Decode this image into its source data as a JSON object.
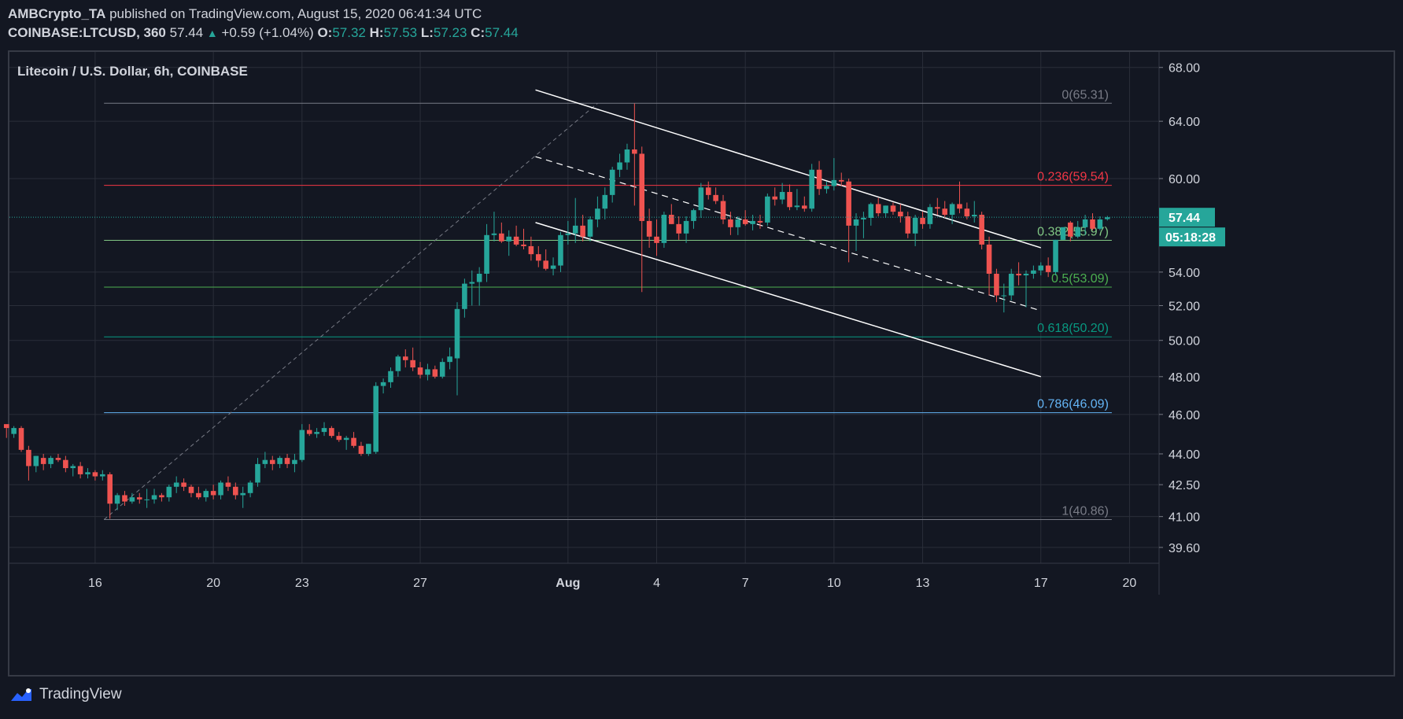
{
  "header": {
    "line1_author": "AMBCrypto_TA",
    "line1_rest": "published on TradingView.com, August 15, 2020 06:41:34 UTC",
    "symbol": "COINBASE:LTCUSD, 360",
    "last": "57.44",
    "change": "+0.59 (+1.04%)",
    "o_label": "O:",
    "o_val": "57.32",
    "h_label": "H:",
    "h_val": "57.53",
    "l_label": "L:",
    "l_val": "57.23",
    "c_label": "C:",
    "c_val": "57.44"
  },
  "footer": {
    "brand": "TradingView",
    "logo_icon": "tradingview-logo-icon"
  },
  "chart_data": {
    "type": "candlestick",
    "title": "Litecoin / U.S. Dollar, 6h, COINBASE",
    "x_ticks": [
      {
        "label": "16",
        "t": 16
      },
      {
        "label": "20",
        "t": 20
      },
      {
        "label": "23",
        "t": 23
      },
      {
        "label": "27",
        "t": 27
      },
      {
        "label": "Aug",
        "t": 32
      },
      {
        "label": "4",
        "t": 35
      },
      {
        "label": "7",
        "t": 38
      },
      {
        "label": "10",
        "t": 41
      },
      {
        "label": "13",
        "t": 44
      },
      {
        "label": "17",
        "t": 48
      },
      {
        "label": "20",
        "t": 51
      }
    ],
    "x_note": "t = July day number (Aug 1 = 32)",
    "y_ticks": [
      "68.00",
      "64.00",
      "60.00",
      "57.44",
      "54.00",
      "52.00",
      "50.00",
      "48.00",
      "46.00",
      "44.00",
      "42.50",
      "41.00",
      "39.60"
    ],
    "y_scale": "log",
    "ylim": [
      38.9,
      69.2
    ],
    "last_price": "57.44",
    "countdown": "05:18:28",
    "fib_levels": [
      {
        "label": "0(65.31)",
        "value": 65.31,
        "color": "#787b86"
      },
      {
        "label": "0.236(59.54)",
        "value": 59.54,
        "color": "#f23645"
      },
      {
        "label": "0.382(55.97)",
        "value": 55.97,
        "color": "#81c784"
      },
      {
        "label": "0.5(53.09)",
        "value": 53.09,
        "color": "#4caf50"
      },
      {
        "label": "0.618(50.20)",
        "value": 50.2,
        "color": "#089981"
      },
      {
        "label": "0.786(46.09)",
        "value": 46.09,
        "color": "#64b5f6"
      },
      {
        "label": "1(40.86)",
        "value": 40.86,
        "color": "#787b86"
      }
    ],
    "fib_range": {
      "t_start": 16.3,
      "t_end": 50.4
    },
    "fib_trend": {
      "t1": 16.3,
      "p1": 40.86,
      "t2": 33.0,
      "p2": 65.31
    },
    "channel": {
      "upper": {
        "t1": 30.9,
        "p1": 66.3,
        "t2": 48.0,
        "p2": 55.5
      },
      "middle": {
        "t1": 30.9,
        "p1": 61.5,
        "t2": 48.0,
        "p2": 51.7
      },
      "lower": {
        "t1": 30.9,
        "p1": 57.1,
        "t2": 48.0,
        "p2": 48.0
      }
    },
    "colors": {
      "up": "#26a69a",
      "down": "#ef5350",
      "background": "#131722",
      "grid": "#2a2e39",
      "text": "#d1d4dc",
      "channel": "#ffffff"
    },
    "candles": [
      [
        45.5,
        45.3,
        44.8,
        45.3
      ],
      [
        45.0,
        45.4,
        44.8,
        45.3
      ],
      [
        45.3,
        45.4,
        44.1,
        44.2
      ],
      [
        44.2,
        44.4,
        42.7,
        43.4
      ],
      [
        43.4,
        43.9,
        43.1,
        43.9
      ],
      [
        43.8,
        44.0,
        43.2,
        43.5
      ],
      [
        43.5,
        43.9,
        43.3,
        43.8
      ],
      [
        43.8,
        44.0,
        43.6,
        43.7
      ],
      [
        43.7,
        43.9,
        43.1,
        43.3
      ],
      [
        43.3,
        43.5,
        42.9,
        43.4
      ],
      [
        43.4,
        43.6,
        42.8,
        43.0
      ],
      [
        43.0,
        43.3,
        42.8,
        43.1
      ],
      [
        43.1,
        43.2,
        42.7,
        42.9
      ],
      [
        42.9,
        43.2,
        42.7,
        43.0
      ],
      [
        43.0,
        43.1,
        40.9,
        41.6
      ],
      [
        41.6,
        42.1,
        41.3,
        42.0
      ],
      [
        42.0,
        42.2,
        41.5,
        41.7
      ],
      [
        41.7,
        42.1,
        41.6,
        41.9
      ],
      [
        41.9,
        42.1,
        41.6,
        41.8
      ],
      [
        41.8,
        42.3,
        41.4,
        41.8
      ],
      [
        41.8,
        42.3,
        41.6,
        42.0
      ],
      [
        42.0,
        42.1,
        41.7,
        41.9
      ],
      [
        41.9,
        42.5,
        41.7,
        42.4
      ],
      [
        42.4,
        42.9,
        42.1,
        42.6
      ],
      [
        42.6,
        42.8,
        42.2,
        42.4
      ],
      [
        42.4,
        42.5,
        41.9,
        42.1
      ],
      [
        42.1,
        42.4,
        41.8,
        41.9
      ],
      [
        41.9,
        42.3,
        41.7,
        42.2
      ],
      [
        42.2,
        42.5,
        41.8,
        42.0
      ],
      [
        42.0,
        42.7,
        41.8,
        42.6
      ],
      [
        42.6,
        42.9,
        42.2,
        42.4
      ],
      [
        42.4,
        42.6,
        41.8,
        42.0
      ],
      [
        42.0,
        42.4,
        41.4,
        42.1
      ],
      [
        42.1,
        42.7,
        41.9,
        42.6
      ],
      [
        42.6,
        43.8,
        42.4,
        43.5
      ],
      [
        43.5,
        44.1,
        43.3,
        43.7
      ],
      [
        43.7,
        43.9,
        43.2,
        43.5
      ],
      [
        43.5,
        43.9,
        43.3,
        43.8
      ],
      [
        43.8,
        44.0,
        43.3,
        43.5
      ],
      [
        43.5,
        44.0,
        43.1,
        43.7
      ],
      [
        43.7,
        45.5,
        43.6,
        45.2
      ],
      [
        45.2,
        45.5,
        44.9,
        45.0
      ],
      [
        45.0,
        45.3,
        44.8,
        45.1
      ],
      [
        45.1,
        45.6,
        44.9,
        45.3
      ],
      [
        45.3,
        45.4,
        44.8,
        44.9
      ],
      [
        44.9,
        45.1,
        44.6,
        44.7
      ],
      [
        44.7,
        44.9,
        44.2,
        44.8
      ],
      [
        44.8,
        45.1,
        44.3,
        44.4
      ],
      [
        44.4,
        44.6,
        43.9,
        44.0
      ],
      [
        44.0,
        44.5,
        43.9,
        44.5
      ],
      [
        44.1,
        47.7,
        44.0,
        47.5
      ],
      [
        47.5,
        47.9,
        47.1,
        47.7
      ],
      [
        47.7,
        48.5,
        47.4,
        48.3
      ],
      [
        48.3,
        49.2,
        48.0,
        49.1
      ],
      [
        49.1,
        49.5,
        48.5,
        48.9
      ],
      [
        48.9,
        49.6,
        48.3,
        48.5
      ],
      [
        48.5,
        48.8,
        47.9,
        48.1
      ],
      [
        48.1,
        48.7,
        47.8,
        48.4
      ],
      [
        48.4,
        48.6,
        47.9,
        48.0
      ],
      [
        48.0,
        49.0,
        47.9,
        48.8
      ],
      [
        48.8,
        49.6,
        48.4,
        49.1
      ],
      [
        49.0,
        52.2,
        47.0,
        51.8
      ],
      [
        51.8,
        53.6,
        51.3,
        53.3
      ],
      [
        53.3,
        54.1,
        52.0,
        53.4
      ],
      [
        53.4,
        54.3,
        52.0,
        53.9
      ],
      [
        53.9,
        57.0,
        53.4,
        56.3
      ],
      [
        56.3,
        57.8,
        55.9,
        56.4
      ],
      [
        56.4,
        57.1,
        55.8,
        55.9
      ],
      [
        55.9,
        56.6,
        55.0,
        56.2
      ],
      [
        56.2,
        56.9,
        55.6,
        55.7
      ],
      [
        55.7,
        56.7,
        55.4,
        55.6
      ],
      [
        55.6,
        56.2,
        54.7,
        55.1
      ],
      [
        55.1,
        55.6,
        54.3,
        54.7
      ],
      [
        54.7,
        55.4,
        54.1,
        54.2
      ],
      [
        54.2,
        54.9,
        53.8,
        54.4
      ],
      [
        54.4,
        56.5,
        54.0,
        56.3
      ],
      [
        56.3,
        57.2,
        55.7,
        56.4
      ],
      [
        56.4,
        58.7,
        55.8,
        56.9
      ],
      [
        56.9,
        57.6,
        55.9,
        56.2
      ],
      [
        56.2,
        57.5,
        55.9,
        57.3
      ],
      [
        57.3,
        58.8,
        56.8,
        58.0
      ],
      [
        58.0,
        59.4,
        57.3,
        58.9
      ],
      [
        58.9,
        60.8,
        58.4,
        60.6
      ],
      [
        60.6,
        61.7,
        60.1,
        61.1
      ],
      [
        61.1,
        62.4,
        60.6,
        62.0
      ],
      [
        62.0,
        65.3,
        58.2,
        61.7
      ],
      [
        61.7,
        62.2,
        52.8,
        57.2
      ],
      [
        57.2,
        58.0,
        55.5,
        56.2
      ],
      [
        56.2,
        57.3,
        55.0,
        55.8
      ],
      [
        55.8,
        57.8,
        55.5,
        57.6
      ],
      [
        57.6,
        58.3,
        57.0,
        57.0
      ],
      [
        57.0,
        57.5,
        56.0,
        56.4
      ],
      [
        56.4,
        57.5,
        55.8,
        57.2
      ],
      [
        57.2,
        58.0,
        56.7,
        57.9
      ],
      [
        57.9,
        59.7,
        57.4,
        59.4
      ],
      [
        59.4,
        59.8,
        58.6,
        58.9
      ],
      [
        58.9,
        59.4,
        58.3,
        58.5
      ],
      [
        58.5,
        58.9,
        57.0,
        57.3
      ],
      [
        57.3,
        57.8,
        56.3,
        56.8
      ],
      [
        56.8,
        57.5,
        56.3,
        57.3
      ],
      [
        57.3,
        57.9,
        56.9,
        57.0
      ],
      [
        57.0,
        57.6,
        56.6,
        57.2
      ],
      [
        57.2,
        57.6,
        56.7,
        57.1
      ],
      [
        57.1,
        59.0,
        56.9,
        58.8
      ],
      [
        58.8,
        59.4,
        58.2,
        58.6
      ],
      [
        58.6,
        59.7,
        58.3,
        59.1
      ],
      [
        59.1,
        59.6,
        57.9,
        58.1
      ],
      [
        58.1,
        59.3,
        57.9,
        58.2
      ],
      [
        58.2,
        58.8,
        57.8,
        58.0
      ],
      [
        58.0,
        61.0,
        57.8,
        60.6
      ],
      [
        60.6,
        61.2,
        58.9,
        59.3
      ],
      [
        59.3,
        59.8,
        59.0,
        59.5
      ],
      [
        59.5,
        61.4,
        59.2,
        59.9
      ],
      [
        59.9,
        60.4,
        59.5,
        59.8
      ],
      [
        59.8,
        60.0,
        54.6,
        56.9
      ],
      [
        56.9,
        57.7,
        55.3,
        57.3
      ],
      [
        57.3,
        57.8,
        56.1,
        57.4
      ],
      [
        57.4,
        58.4,
        56.9,
        58.3
      ],
      [
        58.3,
        58.7,
        57.5,
        57.7
      ],
      [
        57.7,
        58.2,
        57.4,
        58.2
      ],
      [
        58.2,
        58.4,
        57.6,
        57.8
      ],
      [
        57.8,
        58.3,
        57.1,
        57.5
      ],
      [
        57.5,
        57.8,
        56.1,
        56.4
      ],
      [
        56.4,
        57.6,
        55.6,
        57.4
      ],
      [
        57.4,
        57.8,
        56.7,
        57.0
      ],
      [
        57.0,
        58.3,
        56.7,
        58.1
      ],
      [
        58.1,
        58.7,
        57.6,
        58.0
      ],
      [
        58.0,
        58.5,
        57.4,
        57.6
      ],
      [
        57.6,
        58.4,
        57.0,
        58.3
      ],
      [
        58.3,
        59.8,
        57.7,
        58.0
      ],
      [
        58.0,
        58.4,
        57.3,
        57.5
      ],
      [
        57.5,
        58.5,
        57.1,
        57.6
      ],
      [
        57.6,
        57.8,
        55.4,
        55.7
      ],
      [
        55.7,
        56.2,
        52.6,
        53.9
      ],
      [
        53.9,
        54.2,
        52.2,
        52.6
      ],
      [
        52.6,
        53.3,
        51.6,
        52.6
      ],
      [
        52.6,
        54.2,
        52.3,
        53.9
      ],
      [
        53.9,
        54.6,
        53.2,
        53.8
      ],
      [
        53.8,
        54.1,
        51.9,
        53.9
      ],
      [
        53.9,
        54.4,
        53.6,
        54.1
      ],
      [
        54.1,
        54.6,
        53.8,
        54.4
      ],
      [
        54.4,
        54.9,
        53.7,
        54.0
      ],
      [
        54.0,
        56.0,
        53.8,
        56.0
      ],
      [
        56.0,
        56.8,
        56.0,
        56.8
      ],
      [
        57.1,
        57.2,
        55.9,
        56.2
      ],
      [
        56.2,
        57.2,
        56.1,
        56.8
      ],
      [
        56.8,
        57.6,
        56.3,
        57.3
      ],
      [
        57.3,
        57.7,
        56.6,
        56.7
      ],
      [
        56.7,
        57.5,
        56.6,
        57.3
      ],
      [
        57.32,
        57.53,
        57.23,
        57.44
      ]
    ]
  }
}
